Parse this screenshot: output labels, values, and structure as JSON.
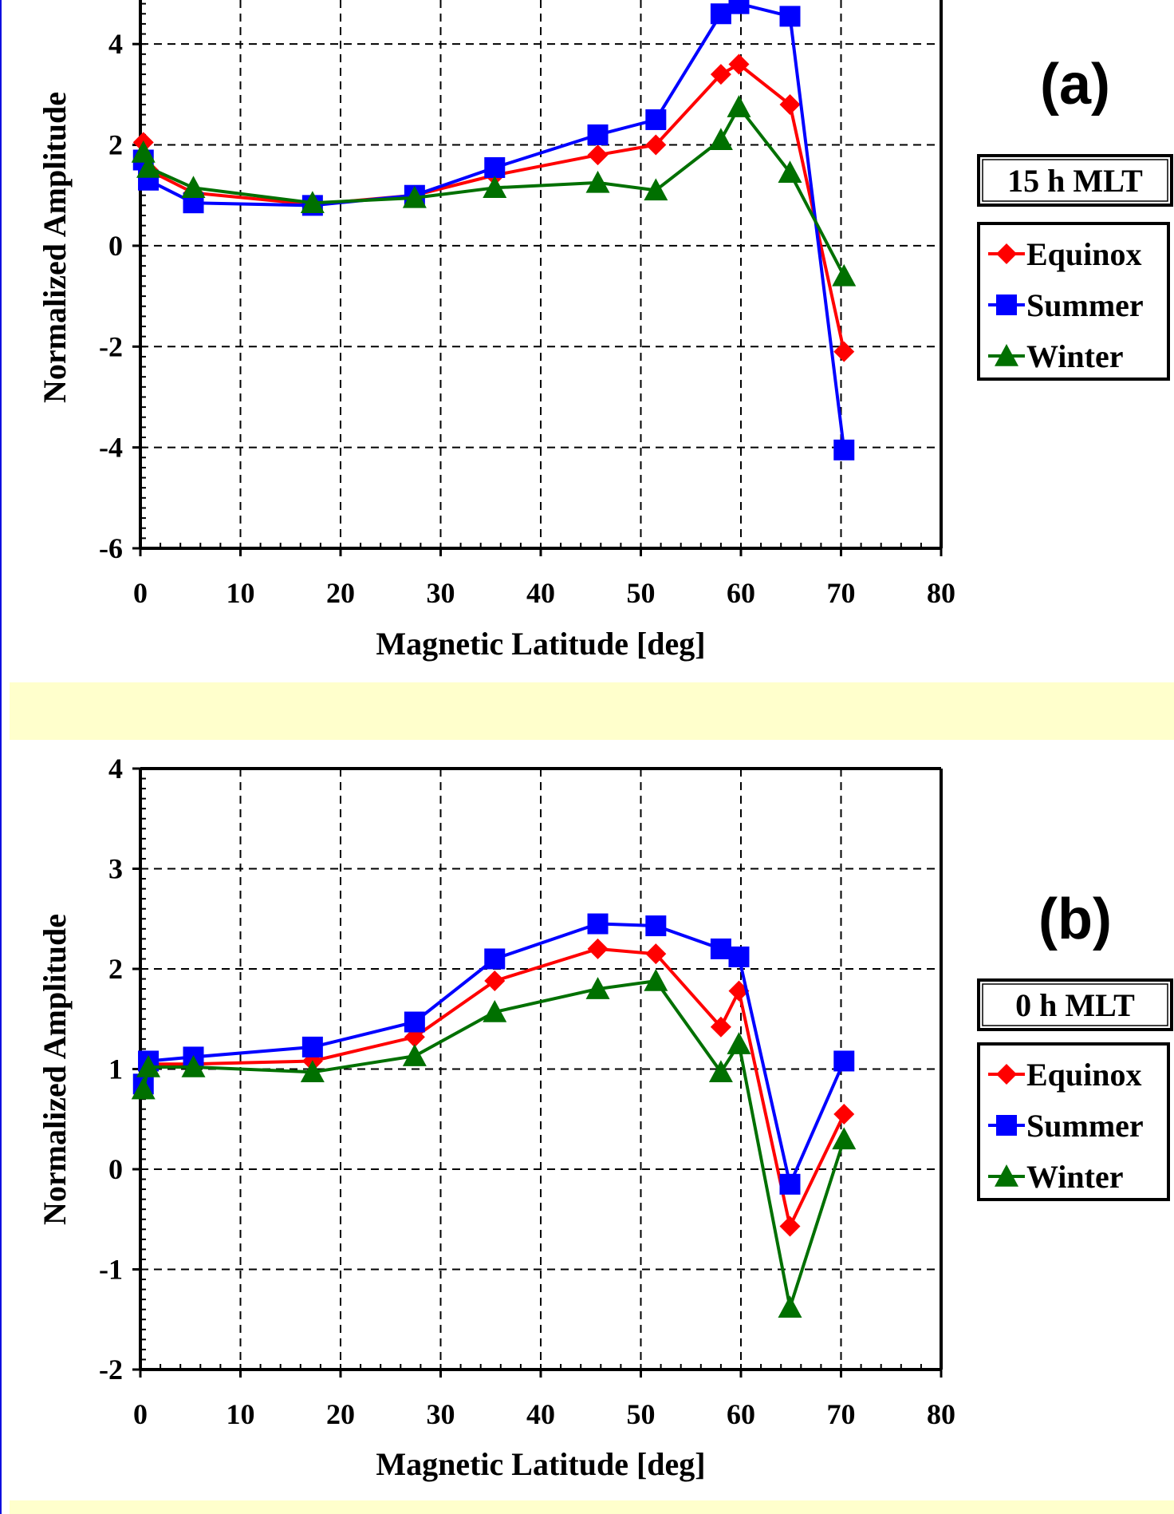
{
  "chart_data": [
    {
      "type": "line",
      "panel_label": "(a)",
      "mlt_label": "15 h MLT",
      "xlabel": "Magnetic Latitude [deg]",
      "ylabel": "Normalized Amplitude",
      "xlim": [
        0,
        80
      ],
      "ylim": [
        -6,
        5
      ],
      "xticks": [
        "0",
        "10",
        "20",
        "30",
        "40",
        "50",
        "60",
        "70",
        "80"
      ],
      "yticks": [
        "-6",
        "-4",
        "-2",
        "0",
        "2",
        "4"
      ],
      "grid": true,
      "legend_position": "right",
      "series": [
        {
          "name": "Equinox",
          "color": "#ff0000",
          "marker": "diamond",
          "points": [
            [
              0.3,
              2.05
            ],
            [
              0.8,
              1.5
            ],
            [
              5.3,
              1.05
            ],
            [
              17.2,
              0.82
            ],
            [
              27.4,
              1.0
            ],
            [
              35.4,
              1.4
            ],
            [
              45.7,
              1.8
            ],
            [
              51.5,
              2.0
            ],
            [
              58.0,
              3.4
            ],
            [
              59.8,
              3.6
            ],
            [
              64.9,
              2.8
            ],
            [
              70.3,
              -2.1
            ]
          ]
        },
        {
          "name": "Summer",
          "color": "#0000ff",
          "marker": "square",
          "points": [
            [
              0.3,
              1.7
            ],
            [
              0.8,
              1.3
            ],
            [
              5.3,
              0.85
            ],
            [
              17.2,
              0.8
            ],
            [
              27.4,
              1.0
            ],
            [
              35.4,
              1.55
            ],
            [
              45.7,
              2.2
            ],
            [
              51.5,
              2.5
            ],
            [
              58.0,
              4.6
            ],
            [
              59.8,
              4.8
            ],
            [
              64.9,
              4.55
            ],
            [
              70.3,
              -4.05
            ]
          ]
        },
        {
          "name": "Winter",
          "color": "#007000",
          "marker": "triangle",
          "points": [
            [
              0.3,
              1.85
            ],
            [
              0.8,
              1.55
            ],
            [
              5.3,
              1.15
            ],
            [
              17.2,
              0.85
            ],
            [
              27.4,
              0.95
            ],
            [
              35.4,
              1.15
            ],
            [
              45.7,
              1.25
            ],
            [
              51.5,
              1.1
            ],
            [
              58.0,
              2.1
            ],
            [
              59.8,
              2.75
            ],
            [
              64.9,
              1.45
            ],
            [
              70.3,
              -0.6
            ]
          ]
        }
      ]
    },
    {
      "type": "line",
      "panel_label": "(b)",
      "mlt_label": "0 h MLT",
      "xlabel": "Magnetic Latitude [deg]",
      "ylabel": "Normalized Amplitude",
      "xlim": [
        0,
        80
      ],
      "ylim": [
        -2,
        4
      ],
      "xticks": [
        "0",
        "10",
        "20",
        "30",
        "40",
        "50",
        "60",
        "70",
        "80"
      ],
      "yticks": [
        "-2",
        "-1",
        "0",
        "1",
        "2",
        "3",
        "4"
      ],
      "grid": true,
      "legend_position": "right",
      "series": [
        {
          "name": "Equinox",
          "color": "#ff0000",
          "marker": "diamond",
          "points": [
            [
              0.3,
              0.9
            ],
            [
              0.8,
              1.05
            ],
            [
              5.3,
              1.05
            ],
            [
              17.2,
              1.08
            ],
            [
              27.4,
              1.32
            ],
            [
              35.4,
              1.88
            ],
            [
              45.7,
              2.2
            ],
            [
              51.5,
              2.15
            ],
            [
              58.0,
              1.42
            ],
            [
              59.8,
              1.78
            ],
            [
              64.9,
              -0.57
            ],
            [
              70.3,
              0.55
            ]
          ]
        },
        {
          "name": "Summer",
          "color": "#0000ff",
          "marker": "square",
          "points": [
            [
              0.3,
              0.85
            ],
            [
              0.8,
              1.08
            ],
            [
              5.3,
              1.12
            ],
            [
              17.2,
              1.22
            ],
            [
              27.4,
              1.47
            ],
            [
              35.4,
              2.1
            ],
            [
              45.7,
              2.45
            ],
            [
              51.5,
              2.43
            ],
            [
              58.0,
              2.2
            ],
            [
              59.8,
              2.12
            ],
            [
              64.9,
              -0.15
            ],
            [
              70.3,
              1.08
            ]
          ]
        },
        {
          "name": "Winter",
          "color": "#007000",
          "marker": "triangle",
          "points": [
            [
              0.3,
              0.8
            ],
            [
              0.8,
              1.02
            ],
            [
              5.3,
              1.02
            ],
            [
              17.2,
              0.97
            ],
            [
              27.4,
              1.13
            ],
            [
              35.4,
              1.57
            ],
            [
              45.7,
              1.8
            ],
            [
              51.5,
              1.88
            ],
            [
              58.0,
              0.97
            ],
            [
              59.8,
              1.25
            ],
            [
              64.9,
              -1.38
            ],
            [
              70.3,
              0.3
            ]
          ]
        }
      ]
    }
  ]
}
